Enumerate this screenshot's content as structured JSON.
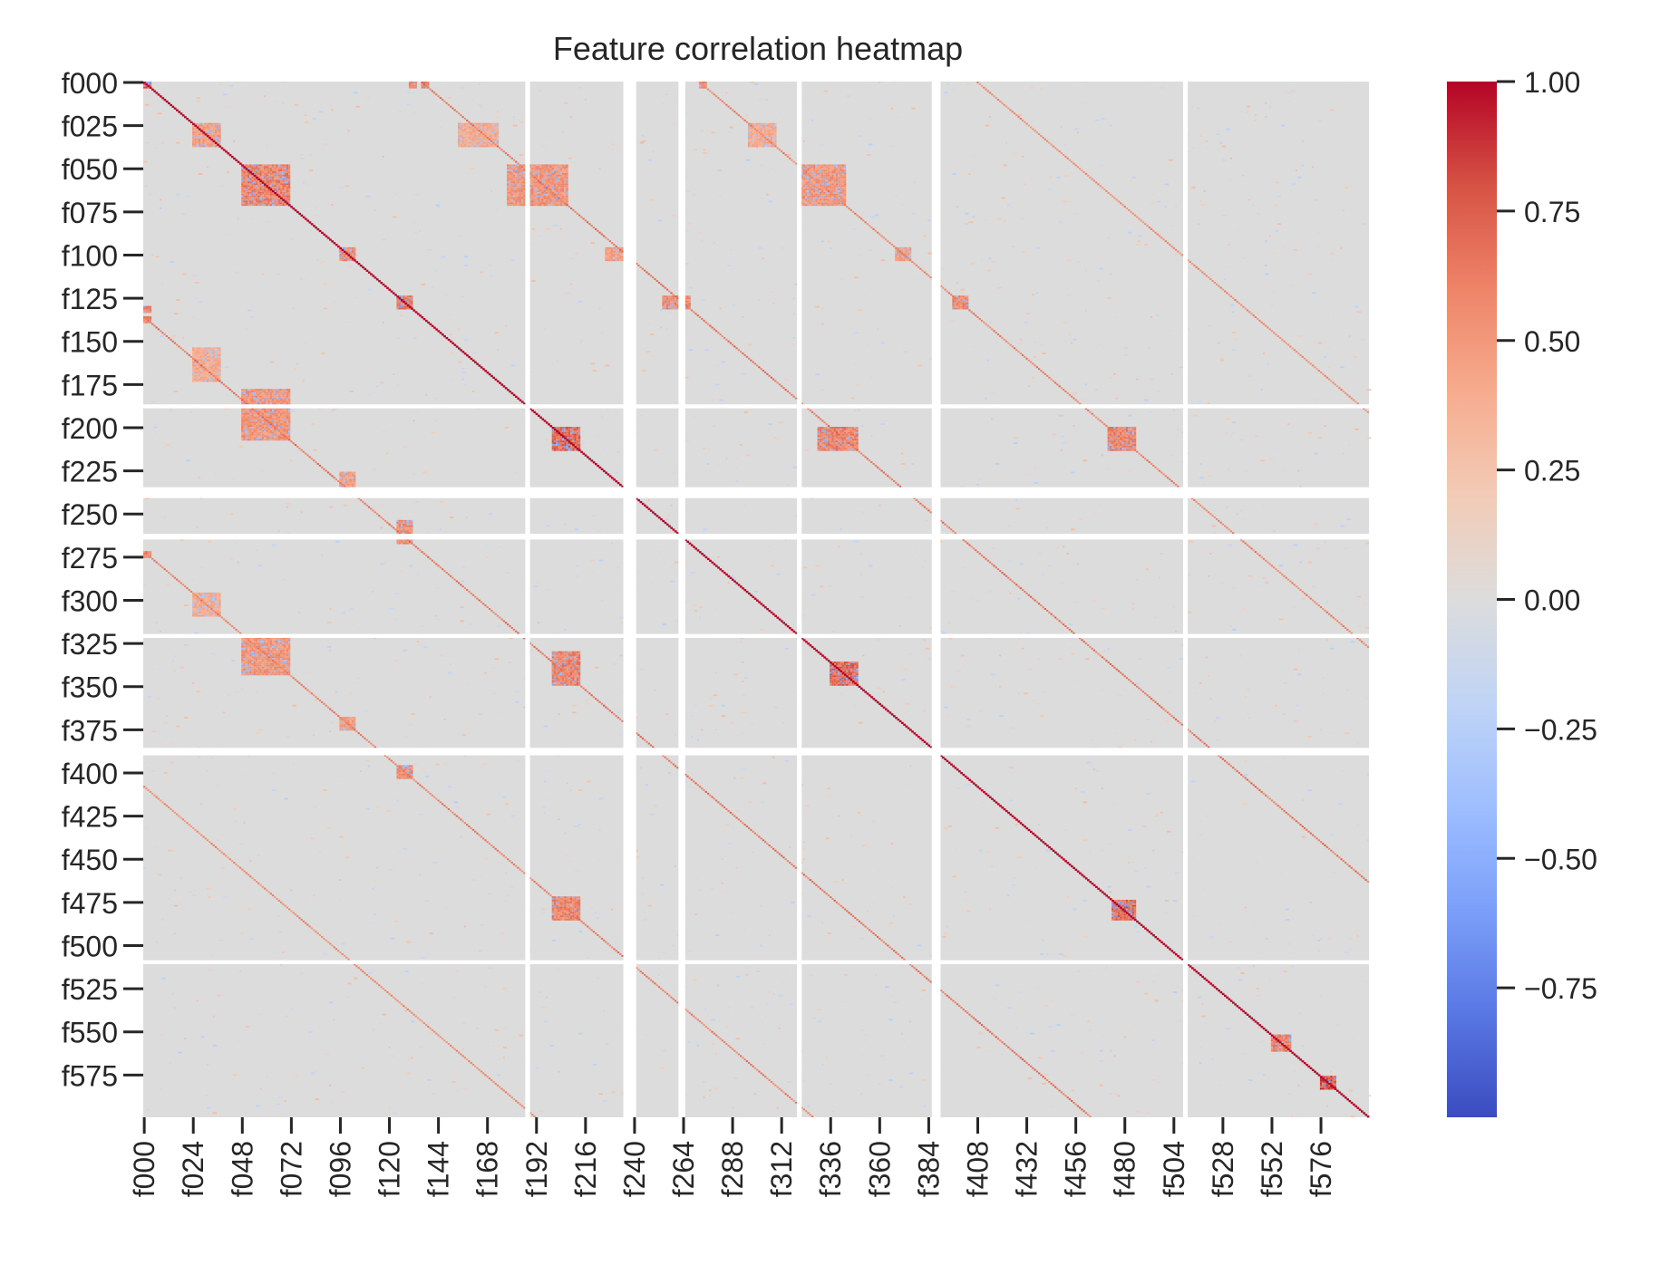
{
  "chart_data": {
    "type": "heatmap",
    "title": "Feature correlation heatmap",
    "xlabel": "",
    "ylabel": "",
    "n_features": 600,
    "feature_prefix": "f",
    "y_tick_labels": [
      "f000",
      "f025",
      "f050",
      "f075",
      "f100",
      "f125",
      "f150",
      "f175",
      "f200",
      "f225",
      "f250",
      "f275",
      "f300",
      "f325",
      "f350",
      "f375",
      "f400",
      "f425",
      "f450",
      "f475",
      "f500",
      "f525",
      "f550",
      "f575"
    ],
    "x_tick_labels": [
      "f000",
      "f024",
      "f048",
      "f072",
      "f096",
      "f120",
      "f144",
      "f168",
      "f192",
      "f216",
      "f240",
      "f264",
      "f288",
      "f312",
      "f336",
      "f360",
      "f384",
      "f408",
      "f432",
      "f456",
      "f480",
      "f504",
      "f528",
      "f552",
      "f576"
    ],
    "colorbar": {
      "colormap": "coolwarm",
      "vmin": -1.0,
      "vmax": 1.0,
      "ticks": [
        1.0,
        0.75,
        0.5,
        0.25,
        0.0,
        -0.25,
        -0.5,
        -0.75
      ],
      "tick_labels": [
        "1.00",
        "0.75",
        "0.50",
        "0.25",
        "0.00",
        "−0.25",
        "−0.50",
        "−0.75"
      ],
      "colors": [
        "#3b4cc0",
        "#5977e3",
        "#7b9ff9",
        "#9ebeff",
        "#c0d4f5",
        "#dddcdc",
        "#f2cbb7",
        "#f7ac8e",
        "#ee8468",
        "#d65244",
        "#b40426"
      ]
    },
    "grid": false,
    "legend": "colorbar-right",
    "nan_color": "#ffffff",
    "background_cell_color": "#dcdcdc",
    "correlation_blocks": [
      {
        "from": 0,
        "to": 4,
        "value": 0.8
      },
      {
        "from": 24,
        "to": 38,
        "value": 0.55
      },
      {
        "from": 48,
        "to": 72,
        "value": 0.7
      },
      {
        "from": 96,
        "to": 104,
        "value": 0.65
      },
      {
        "from": 124,
        "to": 132,
        "value": 0.75
      },
      {
        "from": 200,
        "to": 214,
        "value": 0.8
      },
      {
        "from": 336,
        "to": 350,
        "value": 0.8
      },
      {
        "from": 474,
        "to": 486,
        "value": 0.8
      },
      {
        "from": 552,
        "to": 562,
        "value": 0.7
      },
      {
        "from": 576,
        "to": 584,
        "value": 0.9
      }
    ],
    "block_offsets": [
      130,
      136,
      272
    ],
    "constant_features": [
      187,
      188,
      235,
      236,
      237,
      238,
      239,
      240,
      262,
      263,
      264,
      320,
      321,
      386,
      387,
      388,
      389,
      509,
      510
    ]
  }
}
